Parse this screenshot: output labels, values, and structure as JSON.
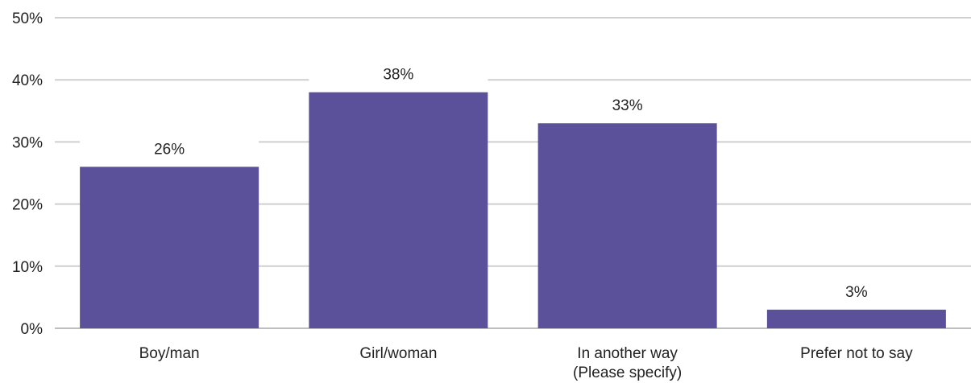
{
  "chart_data": {
    "type": "bar",
    "title": "",
    "xlabel": "",
    "ylabel": "",
    "categories": [
      [
        "Boy/man"
      ],
      [
        "Girl/woman"
      ],
      [
        "In another way",
        "(Please specify)"
      ],
      [
        "Prefer not to say"
      ]
    ],
    "values": [
      26,
      38,
      33,
      3
    ],
    "value_labels": [
      "26%",
      "38%",
      "33%",
      "3%"
    ],
    "ylim": [
      0,
      50
    ],
    "yticks": [
      0,
      10,
      20,
      30,
      40,
      50
    ],
    "ytick_labels": [
      "0%",
      "10%",
      "20%",
      "30%",
      "40%",
      "50%"
    ],
    "grid": true,
    "legend": "none",
    "bar_color": "#5b519b",
    "grid_color": "#cfcfcf"
  }
}
